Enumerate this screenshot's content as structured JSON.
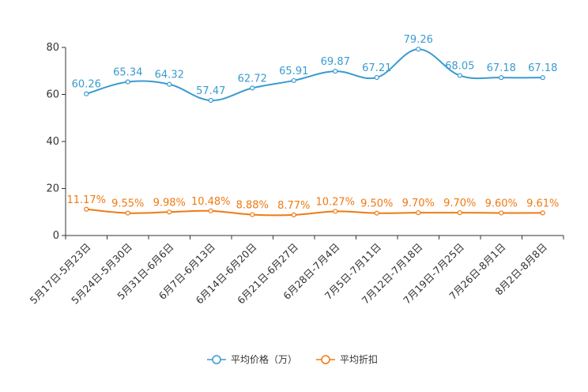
{
  "chart_data": {
    "type": "line",
    "categories": [
      "5月17日-5月23日",
      "5月24日-5月30日",
      "5月31日-6月6日",
      "6月7日-6月13日",
      "6月14日-6月20日",
      "6月21日-6月27日",
      "6月28日-7月4日",
      "7月5日-7月11日",
      "7月12日-7月18日",
      "7月19日-7月25日",
      "7月26日-8月1日",
      "8月2日-8月8日"
    ],
    "ylim": [
      0,
      80
    ],
    "yticks": [
      "0",
      "20",
      "40",
      "60",
      "80"
    ],
    "series": [
      {
        "name": "平均价格（万）",
        "color": "#3a9bd0",
        "values": [
          60.26,
          65.34,
          64.32,
          57.47,
          62.72,
          65.91,
          69.87,
          67.21,
          79.26,
          68.05,
          67.18,
          67.18
        ],
        "labels": [
          "60.26",
          "65.34",
          "64.32",
          "57.47",
          "62.72",
          "65.91",
          "69.87",
          "67.21",
          "79.26",
          "68.05",
          "67.18",
          "67.18"
        ]
      },
      {
        "name": "平均折扣",
        "color": "#f07a12",
        "values": [
          11.17,
          9.55,
          9.98,
          10.48,
          8.88,
          8.77,
          10.27,
          9.5,
          9.7,
          9.7,
          9.6,
          9.61
        ],
        "labels": [
          "11.17%",
          "9.55%",
          "9.98%",
          "10.48%",
          "8.88%",
          "8.77%",
          "10.27%",
          "9.50%",
          "9.70%",
          "9.70%",
          "9.60%",
          "9.61%"
        ]
      }
    ]
  }
}
